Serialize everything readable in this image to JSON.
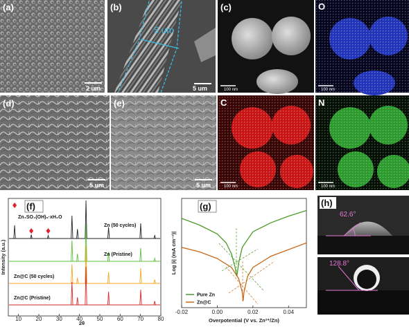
{
  "panels": [
    {
      "label": "(a)",
      "scale_bar": "2 um"
    },
    {
      "label": "(b)",
      "scale_bar": "5 um",
      "annotation": "5 um"
    },
    {
      "label": "(c)",
      "scale_bar": "100 nm"
    },
    {
      "label": "O",
      "scale_bar": "100 nm"
    },
    {
      "label": "(d)",
      "scale_bar": "5 um"
    },
    {
      "label": "(e)",
      "scale_bar": "5 um"
    },
    {
      "label": "C",
      "scale_bar": "100 nm"
    },
    {
      "label": "N",
      "scale_bar": "100 nm"
    },
    {
      "label": "(h)",
      "angles": [
        "62.6°",
        "128.8°"
      ]
    }
  ],
  "chart_data": [
    {
      "type": "spectrum",
      "label": "(f)",
      "xlabel": "2θ",
      "ylabel": "Intensity (a.u.)",
      "annotation": "Zn₄SO₄(OH)₆·xH₂O",
      "markers": {
        "x": [
          8.1,
          16.3,
          24.6
        ],
        "color": "#e0202a"
      },
      "xlim": [
        5,
        80
      ],
      "xticks": [
        10,
        20,
        30,
        40,
        50,
        60,
        70,
        80
      ],
      "ylim": [
        0,
        100
      ],
      "series": [
        {
          "name": "Zn (50 cycles)",
          "color": "#222222",
          "x": [
            8.1,
            16.3,
            24.6,
            36.3,
            39.0,
            43.2,
            54.3,
            70.1,
            77.0
          ],
          "values": [
            35,
            10,
            8,
            60,
            25,
            100,
            30,
            40,
            8
          ]
        },
        {
          "name": "Zn (Pristine)",
          "color": "#5cc23c",
          "x": [
            36.3,
            39.0,
            43.2,
            54.3,
            70.1,
            77.0
          ],
          "values": [
            55,
            20,
            100,
            25,
            35,
            8
          ]
        },
        {
          "name": "Zn@C (50 cycles)",
          "color": "#f5a623",
          "x": [
            36.3,
            39.0,
            43.2,
            54.3,
            70.1,
            77.0
          ],
          "values": [
            50,
            15,
            100,
            30,
            40,
            10
          ]
        },
        {
          "name": "Zn@C (Pristine)",
          "color": "#d62a2a",
          "x": [
            36.3,
            39.0,
            43.2,
            54.3,
            70.1,
            77.0
          ],
          "values": [
            60,
            20,
            100,
            35,
            40,
            10
          ]
        }
      ]
    },
    {
      "type": "line",
      "label": "(g)",
      "xlabel": "Overpotential (V vs. Zn²⁺/Zn)",
      "ylabel": "Log |i| (mA cm⁻²)|",
      "xlim": [
        -0.02,
        0.05
      ],
      "xticks": [
        -0.02,
        {
          "value": 0,
          "label": "0.00"
        },
        0.02,
        0.04
      ],
      "ylim": [
        -4.6,
        0.2
      ],
      "series": [
        {
          "name": "Pure Zn",
          "color": "#4a9a2a",
          "x": [
            -0.02,
            -0.01,
            0,
            0.005,
            0.008,
            0.01,
            0.011,
            0.012,
            0.014,
            0.02,
            0.03,
            0.04,
            0.05
          ],
          "values": [
            -0.6,
            -0.9,
            -1.3,
            -1.7,
            -2.2,
            -2.8,
            -3.2,
            -2.6,
            -1.9,
            -1.2,
            -0.8,
            -0.5,
            -0.25
          ]
        },
        {
          "name": "Zn@C",
          "color": "#c8691a",
          "x": [
            -0.02,
            -0.01,
            0,
            0.008,
            0.012,
            0.014,
            0.0145,
            0.015,
            0.017,
            0.02,
            0.03,
            0.04,
            0.05
          ],
          "values": [
            -1.9,
            -2.1,
            -2.4,
            -2.8,
            -3.3,
            -3.9,
            -4.3,
            -3.9,
            -3.2,
            -2.8,
            -2.3,
            -2.0,
            -1.7
          ]
        }
      ]
    }
  ]
}
